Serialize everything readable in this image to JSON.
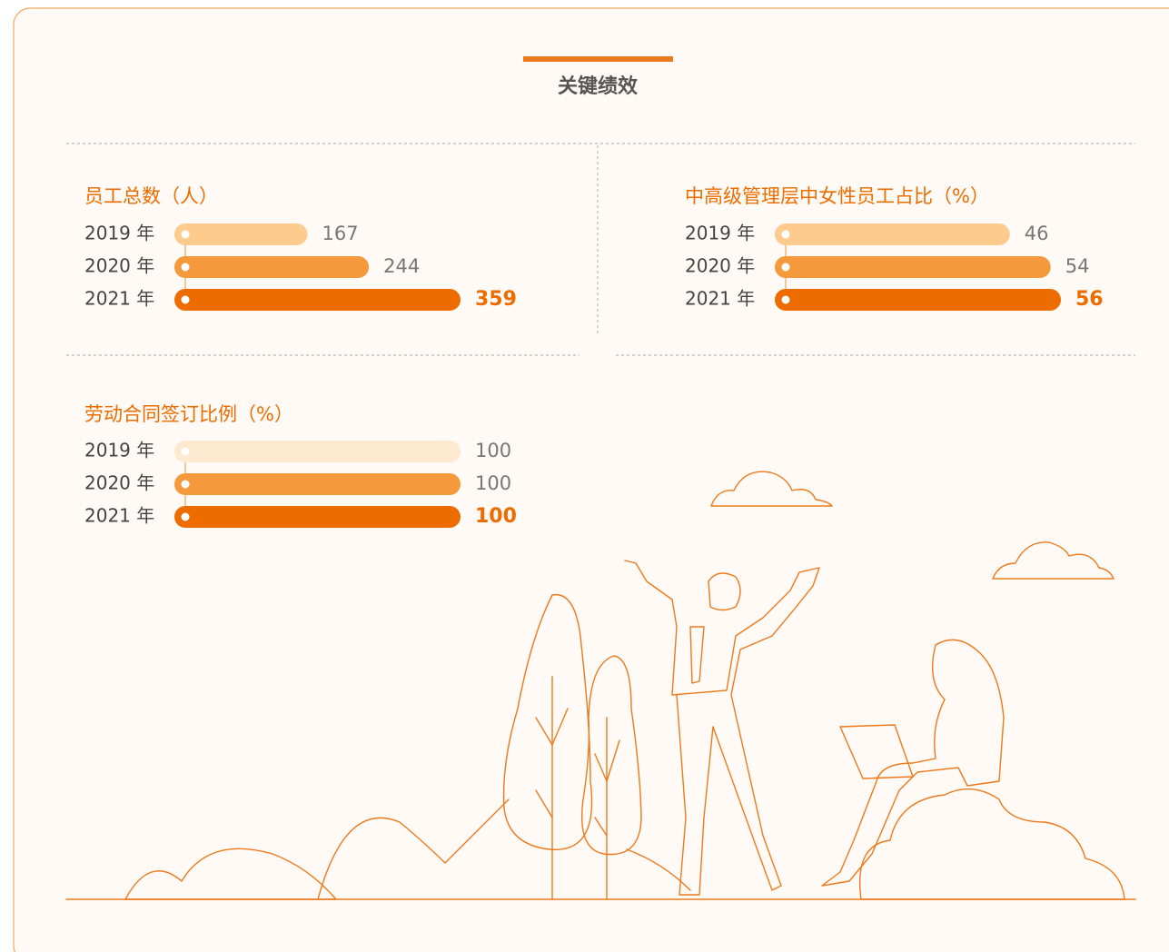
{
  "page_title": "关键绩效",
  "chart_data": [
    {
      "type": "bar",
      "title": "员工总数（人）",
      "categories": [
        "2019 年",
        "2020 年",
        "2021 年"
      ],
      "values": [
        167,
        244,
        359
      ],
      "colors": [
        "#fecb8e",
        "#f49a3d",
        "#ec6c00"
      ]
    },
    {
      "type": "bar",
      "title": "中高级管理层中女性员工占比（%）",
      "categories": [
        "2019 年",
        "2020 年",
        "2021 年"
      ],
      "values": [
        46,
        54,
        56
      ],
      "colors": [
        "#fecb8e",
        "#f49a3d",
        "#ec6c00"
      ]
    },
    {
      "type": "bar",
      "title": "劳动合同签订比例（%）",
      "categories": [
        "2019 年",
        "2020 年",
        "2021 年"
      ],
      "values": [
        100,
        100,
        100
      ],
      "colors": [
        "#fde8d0",
        "#f49a3d",
        "#ec6c00"
      ]
    }
  ]
}
